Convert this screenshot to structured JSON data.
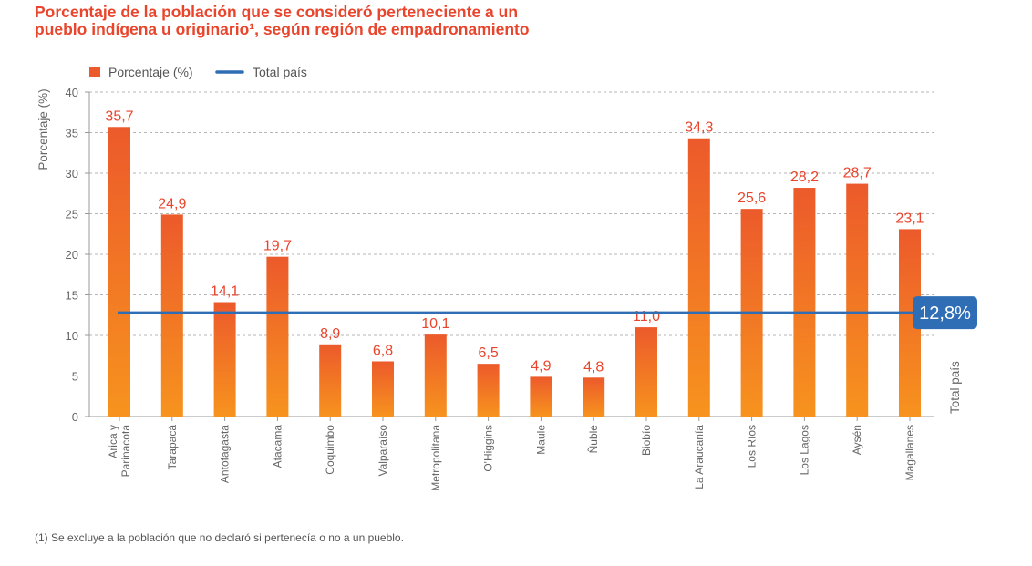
{
  "title_line1": "Porcentaje de la población que se consideró perteneciente a un",
  "title_line2": "pueblo indígena u originario¹, según región de empadronamiento",
  "footnote": "(1) Se excluye a la población que no declaró si pertenecía o no a un pueblo.",
  "colors": {
    "bar_top": "#ec5a2b",
    "bar_bottom": "#f7931e",
    "line": "#2f6eb5",
    "label": "#e8452c"
  },
  "chart_data": {
    "type": "bar",
    "ylabel": "Porcentaje (%)",
    "ylim": [
      0,
      40
    ],
    "yticks": [
      0,
      5,
      10,
      15,
      20,
      25,
      30,
      35,
      40
    ],
    "grid": true,
    "legend_position": "top-left",
    "categories": [
      [
        "Arica y",
        "Parinacota"
      ],
      [
        "Tarapacá"
      ],
      [
        "Antofagasta"
      ],
      [
        "Atacama"
      ],
      [
        "Coquimbo"
      ],
      [
        "Valparaíso"
      ],
      [
        "Metropolitana"
      ],
      [
        "O'Higgins"
      ],
      [
        "Maule"
      ],
      [
        "Ñuble"
      ],
      [
        "Biobío"
      ],
      [
        "La Araucanía"
      ],
      [
        "Los Ríos"
      ],
      [
        "Los Lagos"
      ],
      [
        "Aysén"
      ],
      [
        "Magallanes"
      ]
    ],
    "series": [
      {
        "name": "Porcentaje (%)",
        "values": [
          35.7,
          24.9,
          14.1,
          19.7,
          8.9,
          6.8,
          10.1,
          6.5,
          4.9,
          4.8,
          11.0,
          34.3,
          25.6,
          28.2,
          28.7,
          23.1
        ],
        "labels": [
          "35,7",
          "24,9",
          "14,1",
          "19,7",
          "8,9",
          "6,8",
          "10,1",
          "6,5",
          "4,9",
          "4,8",
          "11,0",
          "34,3",
          "25,6",
          "28,2",
          "28,7",
          "23,1"
        ]
      }
    ],
    "reference_line": {
      "name": "Total país",
      "value": 12.8,
      "label": "12,8%"
    }
  }
}
